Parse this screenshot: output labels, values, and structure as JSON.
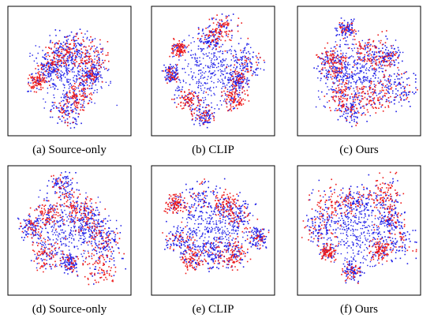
{
  "panels": [
    {
      "caption": "(a) Source-only"
    },
    {
      "caption": "(b) CLIP"
    },
    {
      "caption": "(c) Ours"
    },
    {
      "caption": "(d) Source-only"
    },
    {
      "caption": "(e) CLIP"
    },
    {
      "caption": "(f) Ours"
    }
  ]
}
